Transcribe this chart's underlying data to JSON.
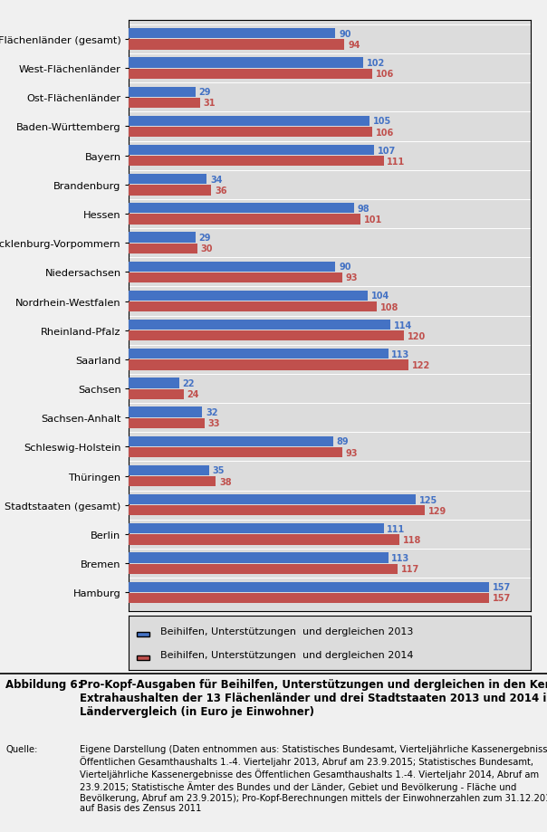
{
  "categories": [
    "Flächenländer (gesamt)",
    "West-Flächenländer",
    "Ost-Flächenländer",
    "Baden-Württemberg",
    "Bayern",
    "Brandenburg",
    "Hessen",
    "Mecklenburg-Vorpommern",
    "Niedersachsen",
    "Nordrhein-Westfalen",
    "Rheinland-Pfalz",
    "Saarland",
    "Sachsen",
    "Sachsen-Anhalt",
    "Schleswig-Holstein",
    "Thüringen",
    "Stadtstaaten (gesamt)",
    "Berlin",
    "Bremen",
    "Hamburg"
  ],
  "values_2013": [
    90,
    102,
    29,
    105,
    107,
    34,
    98,
    29,
    90,
    104,
    114,
    113,
    22,
    32,
    89,
    35,
    125,
    111,
    113,
    157
  ],
  "values_2014": [
    94,
    106,
    31,
    106,
    111,
    36,
    101,
    30,
    93,
    108,
    120,
    122,
    24,
    33,
    93,
    38,
    129,
    118,
    117,
    157
  ],
  "color_2013": "#4472C4",
  "color_2014": "#C0504D",
  "legend_2013": "Beihilfen, Unterstützungen  und dergleichen 2013",
  "legend_2014": "Beihilfen, Unterstützungen  und dergleichen 2014",
  "xlim_max": 175,
  "bar_height": 0.35,
  "bar_gap": 0.03,
  "chart_bg": "#DCDCDC",
  "fig_bg": "#F0F0F0",
  "border_color": "#000000",
  "fig_label": "Abbildung 6:",
  "fig_title": "Pro-Kopf-Ausgaben für Beihilfen, Unterstützungen und dergleichen in den Kern- und\nExtrahaushalten der 13 Flächenländer und drei Stadtstaaten 2013 und 2014 im\nLändervergleich (in Euro je Einwohner)",
  "source_label": "Quelle:",
  "source_text": "Eigene Darstellung (Daten entnommen aus: Statistisches Bundesamt, Vierteljährliche Kassenergebnisse des\nÖffentlichen Gesamthaushalts 1.-4. Vierteljahr 2013, Abruf am 23.9.2015; Statistisches Bundesamt,\nVierteljährliche Kassenergebnisse des Öffentlichen Gesamthaushalts 1.-4. Vierteljahr 2014, Abruf am\n23.9.2015; Statistische Ämter des Bundes und der Länder, Gebiet und Bevölkerung - Fläche und\nBevölkerung, Abruf am 23.9.2015); Pro-Kopf-Berechnungen mittels der Einwohnerzahlen zum 31.12.2013\nauf Basis des Zensus 2011"
}
